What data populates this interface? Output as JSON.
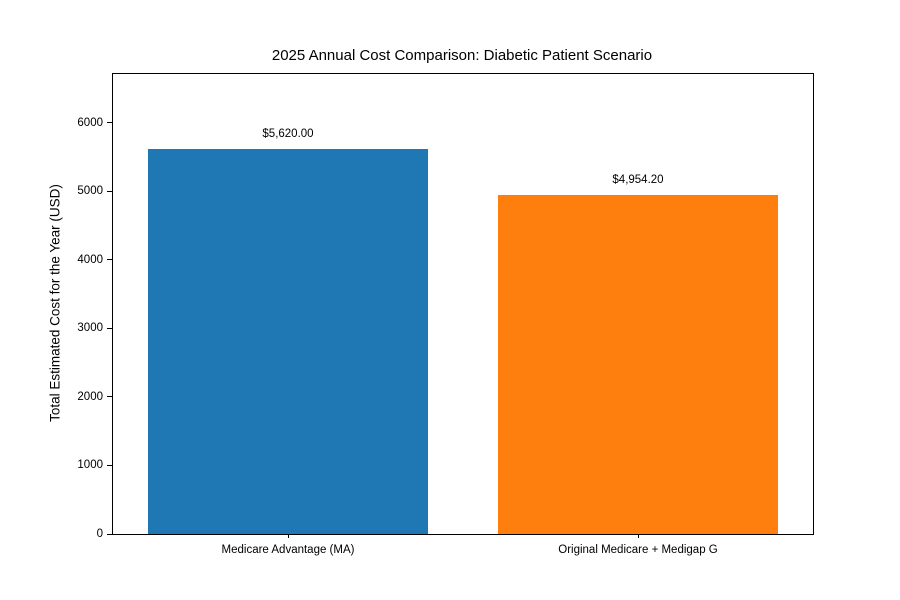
{
  "figure": {
    "background_color": "#ffffff",
    "frame_color": "#000000",
    "text_color": "#000000"
  },
  "chart_data": {
    "type": "bar",
    "title": "2025 Annual Cost Comparison: Diabetic Patient Scenario",
    "xlabel": "",
    "ylabel": "Total Estimated Cost for the Year (USD)",
    "categories": [
      "Medicare Advantage (MA)",
      "Original Medicare + Medigap G"
    ],
    "values": [
      5620.0,
      4954.2
    ],
    "value_labels": [
      "$5,620.00",
      "$4,954.20"
    ],
    "bar_colors": [
      "#1f77b4",
      "#ff7f0e"
    ],
    "ylim": [
      0,
      6715
    ],
    "yticks": [
      0,
      1000,
      2000,
      3000,
      4000,
      5000,
      6000
    ],
    "grid": false,
    "legend_position": "none"
  }
}
